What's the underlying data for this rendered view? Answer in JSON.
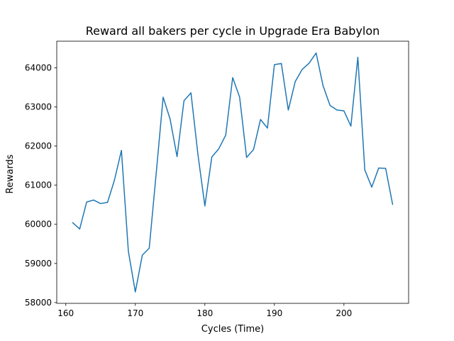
{
  "chart_data": {
    "type": "line",
    "title": "Reward all bakers per cycle in Upgrade Era Babylon",
    "xlabel": "Cycles (Time)",
    "ylabel": "Rewards",
    "xlim": [
      158.7,
      209.3
    ],
    "ylim": [
      57980,
      64680
    ],
    "xticks": [
      160,
      170,
      180,
      190,
      200
    ],
    "yticks": [
      58000,
      59000,
      60000,
      61000,
      62000,
      63000,
      64000
    ],
    "grid": false,
    "line_color": "#1f77b4",
    "series": [
      {
        "x": [
          161,
          162,
          163,
          164,
          165,
          166,
          167,
          168,
          169,
          170,
          171,
          172,
          173,
          174,
          175,
          176,
          177,
          178,
          179,
          180,
          181,
          182,
          183,
          184,
          185,
          186,
          187,
          188,
          189,
          190,
          191,
          192,
          193,
          194,
          195,
          196,
          197,
          198,
          199,
          200,
          201,
          202,
          203,
          204,
          205,
          206,
          207
        ],
        "values": [
          60040,
          59880,
          60570,
          60620,
          60530,
          60560,
          61130,
          61890,
          59310,
          58270,
          59210,
          59390,
          61300,
          63250,
          62690,
          61730,
          63160,
          63360,
          61790,
          60470,
          61720,
          61930,
          62280,
          63750,
          63250,
          61710,
          61910,
          62680,
          62460,
          64080,
          64110,
          62920,
          63650,
          63960,
          64120,
          64380,
          63540,
          63040,
          62920,
          62900,
          62510,
          64270,
          61390,
          60950,
          61440,
          61430,
          60510
        ]
      }
    ]
  }
}
